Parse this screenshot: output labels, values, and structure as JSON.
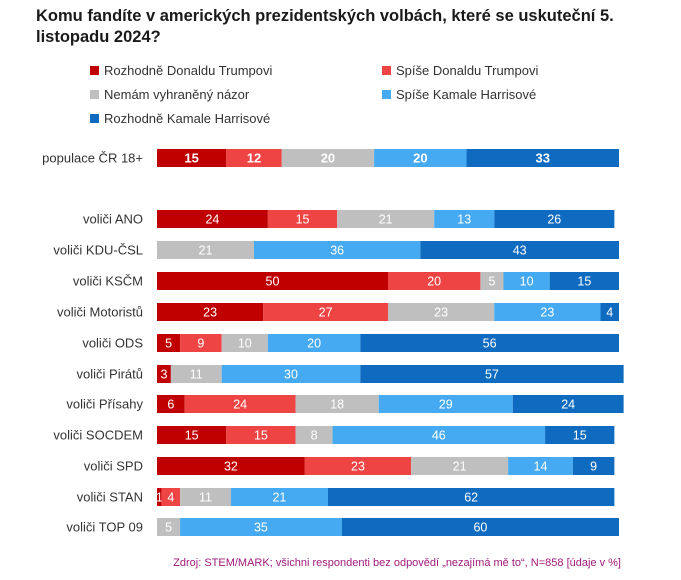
{
  "title": "Komu fandíte v amerických prezidentských volbách, které se uskuteční 5. listopadu 2024?",
  "footer": "Zdroj: STEM/MARK; všichni respondenti bez odpovědí „nezajímá mě to“, N=858 [údaje v %]",
  "chart_data": {
    "type": "bar",
    "orientation": "horizontal",
    "stacked": true,
    "title": "Komu fandíte v amerických prezidentských volbách, které se uskuteční 5. listopadu 2024?",
    "legend_position": "top",
    "categories": [
      "populace ČR 18+",
      "voliči ANO",
      "voliči KDU-ČSL",
      "voliči KSČM",
      "voliči Motoristů",
      "voliči ODS",
      "voliči Pirátů",
      "voliči Přísahy",
      "voliči SOCDEM",
      "voliči SPD",
      "voliči STAN",
      "voliči TOP 09"
    ],
    "series": [
      {
        "name": "Rozhodně Donaldu Trumpovi",
        "color": "#c00000",
        "values": [
          15,
          24,
          0,
          50,
          23,
          5,
          3,
          6,
          15,
          32,
          1,
          0
        ]
      },
      {
        "name": "Spíše Donaldu Trumpovi",
        "color": "#ee4444",
        "values": [
          12,
          15,
          0,
          20,
          27,
          9,
          0,
          24,
          15,
          23,
          4,
          0
        ]
      },
      {
        "name": "Nemám vyhraněný názor",
        "color": "#bfbfbf",
        "values": [
          20,
          21,
          21,
          5,
          23,
          10,
          11,
          18,
          8,
          21,
          11,
          5
        ]
      },
      {
        "name": "Spíše Kamale Harrisové",
        "color": "#45aaf2",
        "values": [
          20,
          13,
          36,
          10,
          23,
          20,
          30,
          29,
          46,
          14,
          21,
          35
        ]
      },
      {
        "name": "Rozhodně Kamale Harrisové",
        "color": "#0e6bbf",
        "values": [
          33,
          26,
          43,
          15,
          4,
          56,
          57,
          24,
          15,
          9,
          62,
          60
        ]
      }
    ],
    "xlim": [
      0,
      100
    ],
    "grid": false
  }
}
